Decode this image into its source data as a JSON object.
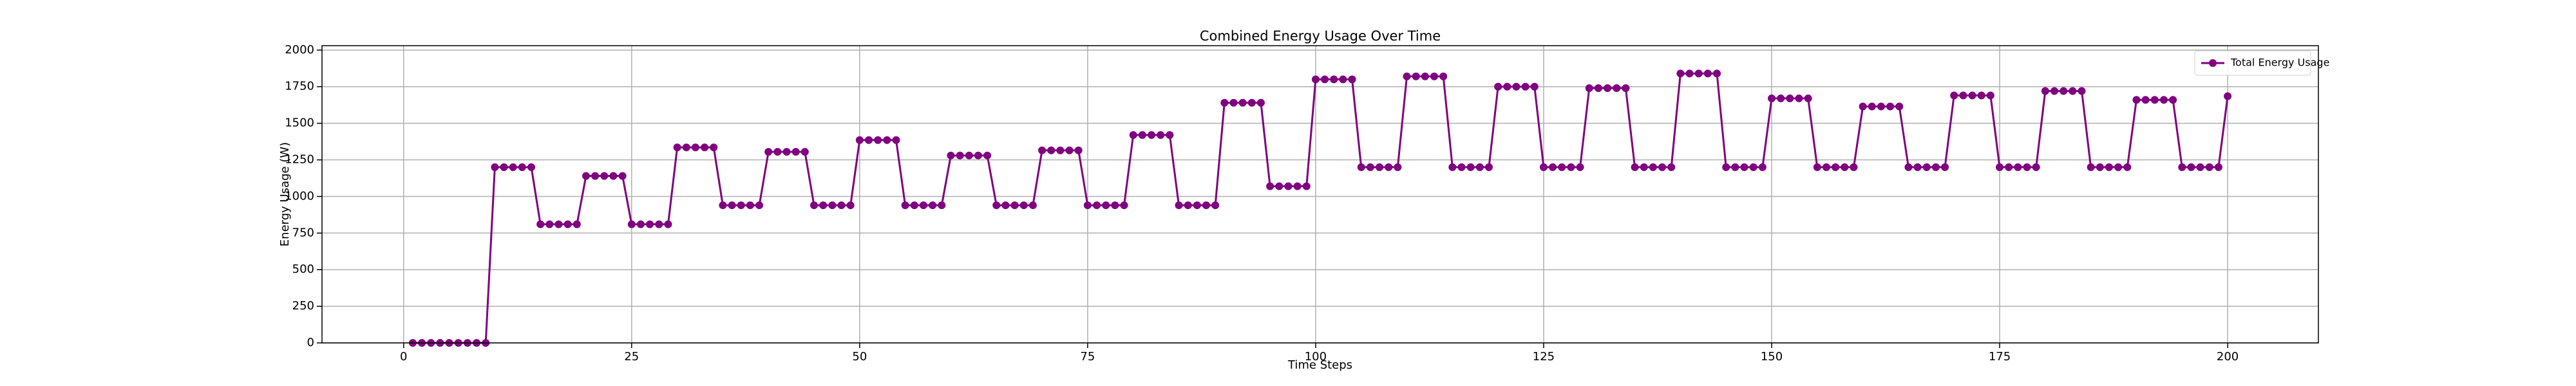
{
  "chart_data": {
    "type": "line",
    "title": "Combined Energy Usage Over Time",
    "xlabel": "Time Steps",
    "ylabel": "Energy Usage (W)",
    "x": [
      1,
      2,
      3,
      4,
      5,
      6,
      7,
      8,
      9,
      10,
      11,
      12,
      13,
      14,
      15,
      16,
      17,
      18,
      19,
      20,
      21,
      22,
      23,
      24,
      25,
      26,
      27,
      28,
      29,
      30,
      31,
      32,
      33,
      34,
      35,
      36,
      37,
      38,
      39,
      40,
      41,
      42,
      43,
      44,
      45,
      46,
      47,
      48,
      49,
      50,
      51,
      52,
      53,
      54,
      55,
      56,
      57,
      58,
      59,
      60,
      61,
      62,
      63,
      64,
      65,
      66,
      67,
      68,
      69,
      70,
      71,
      72,
      73,
      74,
      75,
      76,
      77,
      78,
      79,
      80,
      81,
      82,
      83,
      84,
      85,
      86,
      87,
      88,
      89,
      90,
      91,
      92,
      93,
      94,
      95,
      96,
      97,
      98,
      99,
      100,
      101,
      102,
      103,
      104,
      105,
      106,
      107,
      108,
      109,
      110,
      111,
      112,
      113,
      114,
      115,
      116,
      117,
      118,
      119,
      120,
      121,
      122,
      123,
      124,
      125,
      126,
      127,
      128,
      129,
      130,
      131,
      132,
      133,
      134,
      135,
      136,
      137,
      138,
      139,
      140,
      141,
      142,
      143,
      144,
      145,
      146,
      147,
      148,
      149,
      150,
      151,
      152,
      153,
      154,
      155,
      156,
      157,
      158,
      159,
      160,
      161,
      162,
      163,
      164,
      165,
      166,
      167,
      168,
      169,
      170,
      171,
      172,
      173,
      174,
      175,
      176,
      177,
      178,
      179,
      180,
      181,
      182,
      183,
      184,
      185,
      186,
      187,
      188,
      189,
      190,
      191,
      192,
      193,
      194,
      195,
      196,
      197,
      198,
      199,
      200
    ],
    "series": [
      {
        "name": "Total Energy Usage",
        "color": "#800080",
        "values": [
          0,
          0,
          0,
          0,
          0,
          0,
          0,
          0,
          0,
          1200,
          1200,
          1200,
          1200,
          1200,
          810,
          810,
          810,
          810,
          810,
          1140,
          1140,
          1140,
          1140,
          1140,
          810,
          810,
          810,
          810,
          810,
          1335,
          1335,
          1335,
          1335,
          1335,
          940,
          940,
          940,
          940,
          940,
          1305,
          1305,
          1305,
          1305,
          1305,
          940,
          940,
          940,
          940,
          940,
          1385,
          1385,
          1385,
          1385,
          1385,
          940,
          940,
          940,
          940,
          940,
          1280,
          1280,
          1280,
          1280,
          1280,
          940,
          940,
          940,
          940,
          940,
          1315,
          1315,
          1315,
          1315,
          1315,
          940,
          940,
          940,
          940,
          940,
          1420,
          1420,
          1420,
          1420,
          1420,
          940,
          940,
          940,
          940,
          940,
          1640,
          1640,
          1640,
          1640,
          1640,
          1070,
          1070,
          1070,
          1070,
          1070,
          1800,
          1800,
          1800,
          1800,
          1800,
          1200,
          1200,
          1200,
          1200,
          1200,
          1820,
          1820,
          1820,
          1820,
          1820,
          1200,
          1200,
          1200,
          1200,
          1200,
          1750,
          1750,
          1750,
          1750,
          1750,
          1200,
          1200,
          1200,
          1200,
          1200,
          1740,
          1740,
          1740,
          1740,
          1740,
          1200,
          1200,
          1200,
          1200,
          1200,
          1840,
          1840,
          1840,
          1840,
          1840,
          1200,
          1200,
          1200,
          1200,
          1200,
          1670,
          1670,
          1670,
          1670,
          1670,
          1200,
          1200,
          1200,
          1200,
          1200,
          1615,
          1615,
          1615,
          1615,
          1615,
          1200,
          1200,
          1200,
          1200,
          1200,
          1690,
          1690,
          1690,
          1690,
          1690,
          1200,
          1200,
          1200,
          1200,
          1200,
          1720,
          1720,
          1720,
          1720,
          1720,
          1200,
          1200,
          1200,
          1200,
          1200,
          1660,
          1660,
          1660,
          1660,
          1660,
          1200,
          1200,
          1200,
          1200,
          1200,
          1685
        ]
      }
    ],
    "xlim": [
      -8.95,
      209.95
    ],
    "xticks": [
      0,
      25,
      50,
      75,
      100,
      125,
      150,
      175,
      200
    ],
    "ylim": [
      0,
      2030
    ],
    "yticks": [
      0,
      250,
      500,
      750,
      1000,
      1250,
      1500,
      1750,
      2000
    ],
    "grid": true,
    "legend": "upper right"
  }
}
